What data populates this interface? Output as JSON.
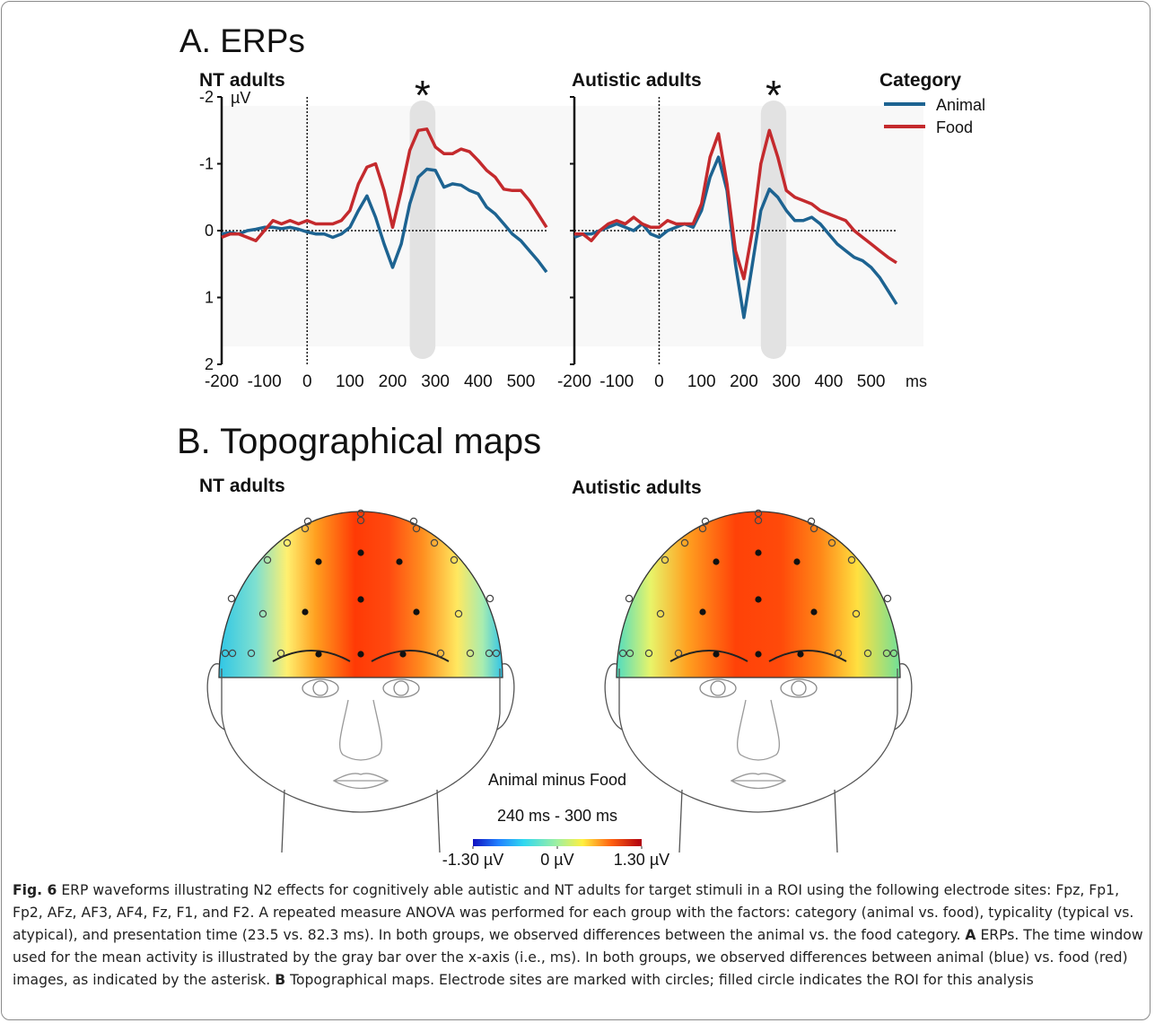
{
  "panel_a_title": "A. ERPs",
  "legend_title": "Category",
  "chart_data": [
    {
      "type": "line",
      "title": "NT adults",
      "y_unit": "µV",
      "y_inverted": true,
      "ytick_labels": true,
      "xlim": [
        -200,
        560
      ],
      "ylim": [
        -2,
        2
      ],
      "xticks": [
        -200,
        -100,
        0,
        100,
        200,
        300,
        400,
        500
      ],
      "yticks": [
        -2,
        -1,
        0,
        1,
        2
      ],
      "highlight": {
        "range": [
          240,
          300
        ],
        "label": "*"
      },
      "x": [
        -200,
        -180,
        -160,
        -140,
        -120,
        -100,
        -80,
        -60,
        -40,
        -20,
        0,
        20,
        40,
        60,
        80,
        100,
        120,
        140,
        160,
        180,
        200,
        220,
        240,
        260,
        280,
        300,
        320,
        340,
        360,
        380,
        400,
        420,
        440,
        460,
        480,
        500,
        520,
        540,
        560
      ],
      "series": [
        {
          "name": "Animal",
          "color": "#1d6391",
          "values": [
            0.05,
            0.03,
            0.05,
            0.0,
            -0.02,
            -0.05,
            -0.05,
            -0.03,
            -0.05,
            -0.02,
            0.02,
            0.05,
            0.05,
            0.1,
            0.05,
            -0.05,
            -0.3,
            -0.52,
            -0.2,
            0.2,
            0.55,
            0.2,
            -0.4,
            -0.8,
            -0.92,
            -0.9,
            -0.65,
            -0.7,
            -0.68,
            -0.6,
            -0.55,
            -0.35,
            -0.25,
            -0.1,
            0.05,
            0.15,
            0.3,
            0.45,
            0.62
          ]
        },
        {
          "name": "Food",
          "color": "#c42a2d",
          "values": [
            0.1,
            0.05,
            0.05,
            0.1,
            0.15,
            0.0,
            -0.15,
            -0.1,
            -0.15,
            -0.1,
            -0.15,
            -0.1,
            -0.1,
            -0.1,
            -0.15,
            -0.3,
            -0.7,
            -0.95,
            -1.0,
            -0.6,
            -0.05,
            -0.6,
            -1.2,
            -1.5,
            -1.52,
            -1.25,
            -1.15,
            -1.15,
            -1.22,
            -1.18,
            -1.05,
            -0.9,
            -0.8,
            -0.62,
            -0.6,
            -0.6,
            -0.45,
            -0.25,
            -0.05
          ]
        }
      ]
    },
    {
      "type": "line",
      "title": "Autistic adults",
      "x_unit": "ms",
      "y_inverted": true,
      "ytick_labels": false,
      "xlim": [
        -200,
        560
      ],
      "ylim": [
        -2,
        2
      ],
      "xticks": [
        -200,
        -100,
        0,
        100,
        200,
        300,
        400,
        500
      ],
      "yticks": [
        -2,
        -1,
        0,
        1,
        2
      ],
      "highlight": {
        "range": [
          240,
          300
        ],
        "label": "*"
      },
      "x": [
        -200,
        -180,
        -160,
        -140,
        -120,
        -100,
        -80,
        -60,
        -40,
        -20,
        0,
        20,
        40,
        60,
        80,
        100,
        120,
        140,
        160,
        180,
        200,
        220,
        240,
        260,
        280,
        300,
        320,
        340,
        360,
        380,
        400,
        420,
        440,
        460,
        480,
        500,
        520,
        540,
        560
      ],
      "series": [
        {
          "name": "Animal",
          "color": "#1d6391",
          "values": [
            0.1,
            0.05,
            0.05,
            0.0,
            -0.05,
            -0.1,
            -0.05,
            0.0,
            -0.1,
            0.05,
            0.1,
            0.0,
            -0.05,
            -0.1,
            -0.05,
            -0.3,
            -0.8,
            -1.1,
            -0.6,
            0.5,
            1.3,
            0.5,
            -0.3,
            -0.62,
            -0.5,
            -0.3,
            -0.15,
            -0.15,
            -0.2,
            -0.1,
            0.05,
            0.2,
            0.3,
            0.4,
            0.45,
            0.55,
            0.7,
            0.9,
            1.1
          ]
        },
        {
          "name": "Food",
          "color": "#c42a2d",
          "values": [
            0.05,
            0.05,
            0.15,
            0.0,
            -0.1,
            -0.15,
            -0.1,
            -0.2,
            -0.1,
            -0.05,
            -0.05,
            -0.15,
            -0.1,
            -0.1,
            -0.1,
            -0.4,
            -1.1,
            -1.45,
            -0.7,
            0.3,
            0.72,
            0.0,
            -1.0,
            -1.5,
            -1.1,
            -0.6,
            -0.5,
            -0.45,
            -0.4,
            -0.3,
            -0.25,
            -0.2,
            -0.15,
            0.0,
            0.1,
            0.2,
            0.3,
            0.4,
            0.48
          ]
        }
      ]
    }
  ],
  "panel_b": {
    "title": "B. Topographical maps",
    "groups": [
      "NT adults",
      "Autistic adults"
    ],
    "contrast": "Animal minus Food",
    "window": "240 ms - 300 ms",
    "colorbar": {
      "lim": [
        -1.3,
        1.3
      ],
      "ticks": [
        {
          "value": -1.3,
          "label": "-1.30 µV"
        },
        {
          "value": 0,
          "label": "0 µV"
        },
        {
          "value": 1.3,
          "label": "1.30 µV"
        }
      ]
    }
  },
  "caption": [
    {
      "text": "Fig. 6",
      "bold": true
    },
    {
      "text": " ERP waveforms illustrating N2 effects for cognitively able autistic and NT adults for target stimuli in a ROI using the following electrode sites: Fpz, Fp1, Fp2, AFz, AF3, AF4, Fz, F1, and F2. A repeated measure ANOVA was performed for each group with the factors: category (animal vs. food), typicality (typical vs. atypical), and presentation time (23.5 vs. 82.3 ms). In both groups, we observed differences between the animal vs. the food category. ",
      "bold": false
    },
    {
      "text": "A",
      "bold": true
    },
    {
      "text": " ERPs. The time window used for the mean activity is illustrated by the gray bar over the x-axis (i.e., ms). In both groups, we observed differences between animal (blue) vs. food (red) images, as indicated by the asterisk. ",
      "bold": false
    },
    {
      "text": "B",
      "bold": true
    },
    {
      "text": " Topographical maps. Electrode sites are marked with circles; filled circle indicates the ROI for this analysis",
      "bold": false
    }
  ]
}
